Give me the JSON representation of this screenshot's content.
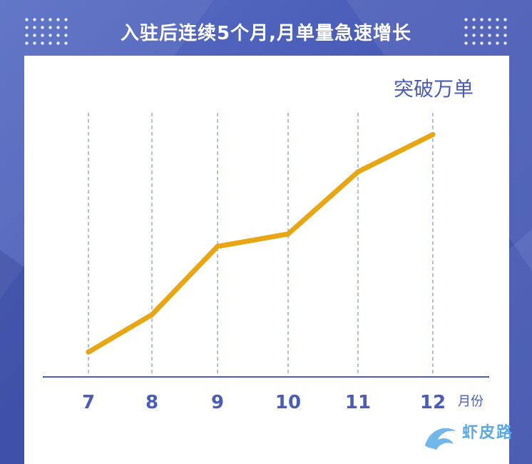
{
  "title": "入驻后连续5个月,月单量急速增长",
  "annotation": "突破万单",
  "unit_label": "月份",
  "watermark": {
    "text": "虾皮路"
  },
  "colors": {
    "background": "#4a5db8",
    "line": "#e8a614",
    "axis": "#4a5db8",
    "tick_text": "#4a5db8",
    "grid": "#6b7fc9"
  },
  "chart_data": {
    "type": "line",
    "title": "入驻后连续5个月,月单量急速增长",
    "xlabel": "月份",
    "ylabel": "",
    "categories": [
      "7",
      "8",
      "9",
      "10",
      "11",
      "12"
    ],
    "values": [
      8,
      20,
      42,
      46,
      66,
      78
    ],
    "ylim": [
      0,
      85
    ],
    "grid": "vertical dashed",
    "annotations": [
      {
        "text": "突破万单",
        "at": "12"
      }
    ]
  }
}
